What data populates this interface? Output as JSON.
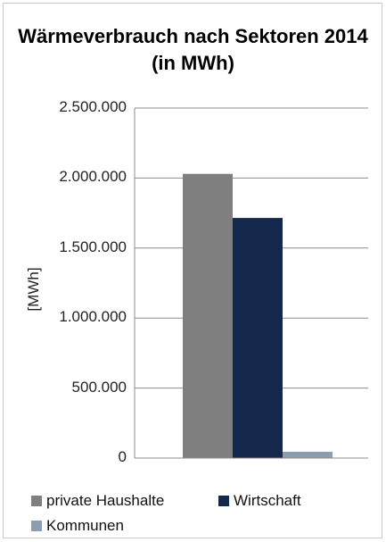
{
  "chart_data": {
    "type": "bar",
    "title": "Wärmeverbrauch nach Sektoren 2014",
    "subtitle": "(in MWh)",
    "ylabel": "[MWh]",
    "xlabel": "",
    "ylim": [
      0,
      2500000
    ],
    "yticks": [
      "0",
      "500.000",
      "1.000.000",
      "1.500.000",
      "2.000.000",
      "2.500.000"
    ],
    "grid": true,
    "legend_position": "bottom",
    "categories": [
      "2014"
    ],
    "series": [
      {
        "name": "private Haushalte",
        "values": [
          2030000
        ],
        "color": "#7f7f7f"
      },
      {
        "name": "Wirtschaft",
        "values": [
          1715000
        ],
        "color": "#14284b"
      },
      {
        "name": "Kommunen",
        "values": [
          45000
        ],
        "color": "#8d9db0"
      }
    ]
  }
}
